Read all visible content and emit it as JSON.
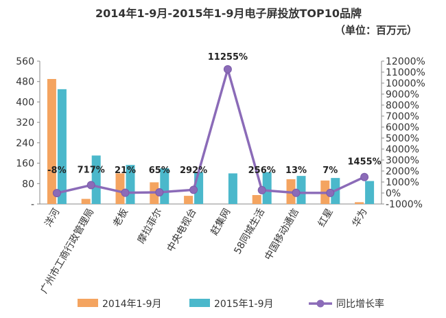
{
  "chart_data": {
    "type": "bar",
    "title": "2014年1-9月-2015年1-9月电子屏投放TOP10品牌",
    "subtitle": "（单位：百万元）",
    "categories": [
      "洋河",
      "广州市工商行政管理局",
      "老板",
      "摩拉菲尔",
      "中央电视台",
      "赶集网",
      "58同城生活",
      "中国移动通信",
      "红星",
      "华为"
    ],
    "series": [
      {
        "name": "2014年1-9月",
        "type": "bar",
        "axis": "left",
        "color": "#F4A460",
        "values": [
          490,
          20,
          120,
          85,
          32,
          0,
          35,
          97,
          92,
          7
        ]
      },
      {
        "name": "2015年1-9月",
        "type": "bar",
        "axis": "left",
        "color": "#4BB8CB",
        "values": [
          450,
          190,
          153,
          140,
          125,
          120,
          125,
          110,
          102,
          90
        ]
      },
      {
        "name": "同比增长率",
        "type": "line",
        "axis": "right",
        "color": "#8B6BB8",
        "values": [
          -8,
          717,
          21,
          65,
          292,
          11255,
          256,
          13,
          7,
          1455
        ],
        "labels": [
          "-8%",
          "717%",
          "21%",
          "65%",
          "292%",
          "11255%",
          "256%",
          "13%",
          "7%",
          "1455%"
        ]
      }
    ],
    "y_left": {
      "min": 0,
      "max": 560,
      "ticks": [
        0,
        80,
        160,
        240,
        320,
        400,
        480,
        560
      ],
      "tick_labels": [
        "-",
        "80",
        "160",
        "240",
        "320",
        "400",
        "480",
        "560"
      ]
    },
    "y_right": {
      "min": -1000,
      "max": 12000,
      "ticks": [
        -1000,
        0,
        1000,
        2000,
        3000,
        4000,
        5000,
        6000,
        7000,
        8000,
        9000,
        10000,
        11000,
        12000
      ],
      "tick_labels": [
        "-1000%",
        "0%",
        "1000%",
        "2000%",
        "3000%",
        "4000%",
        "5000%",
        "6000%",
        "7000%",
        "8000%",
        "9000%",
        "10000%",
        "11000%",
        "12000%"
      ]
    },
    "legend": {
      "position": "bottom",
      "entries": [
        "2014年1-9月",
        "2015年1-9月",
        "同比增长率"
      ]
    },
    "grid": false
  }
}
